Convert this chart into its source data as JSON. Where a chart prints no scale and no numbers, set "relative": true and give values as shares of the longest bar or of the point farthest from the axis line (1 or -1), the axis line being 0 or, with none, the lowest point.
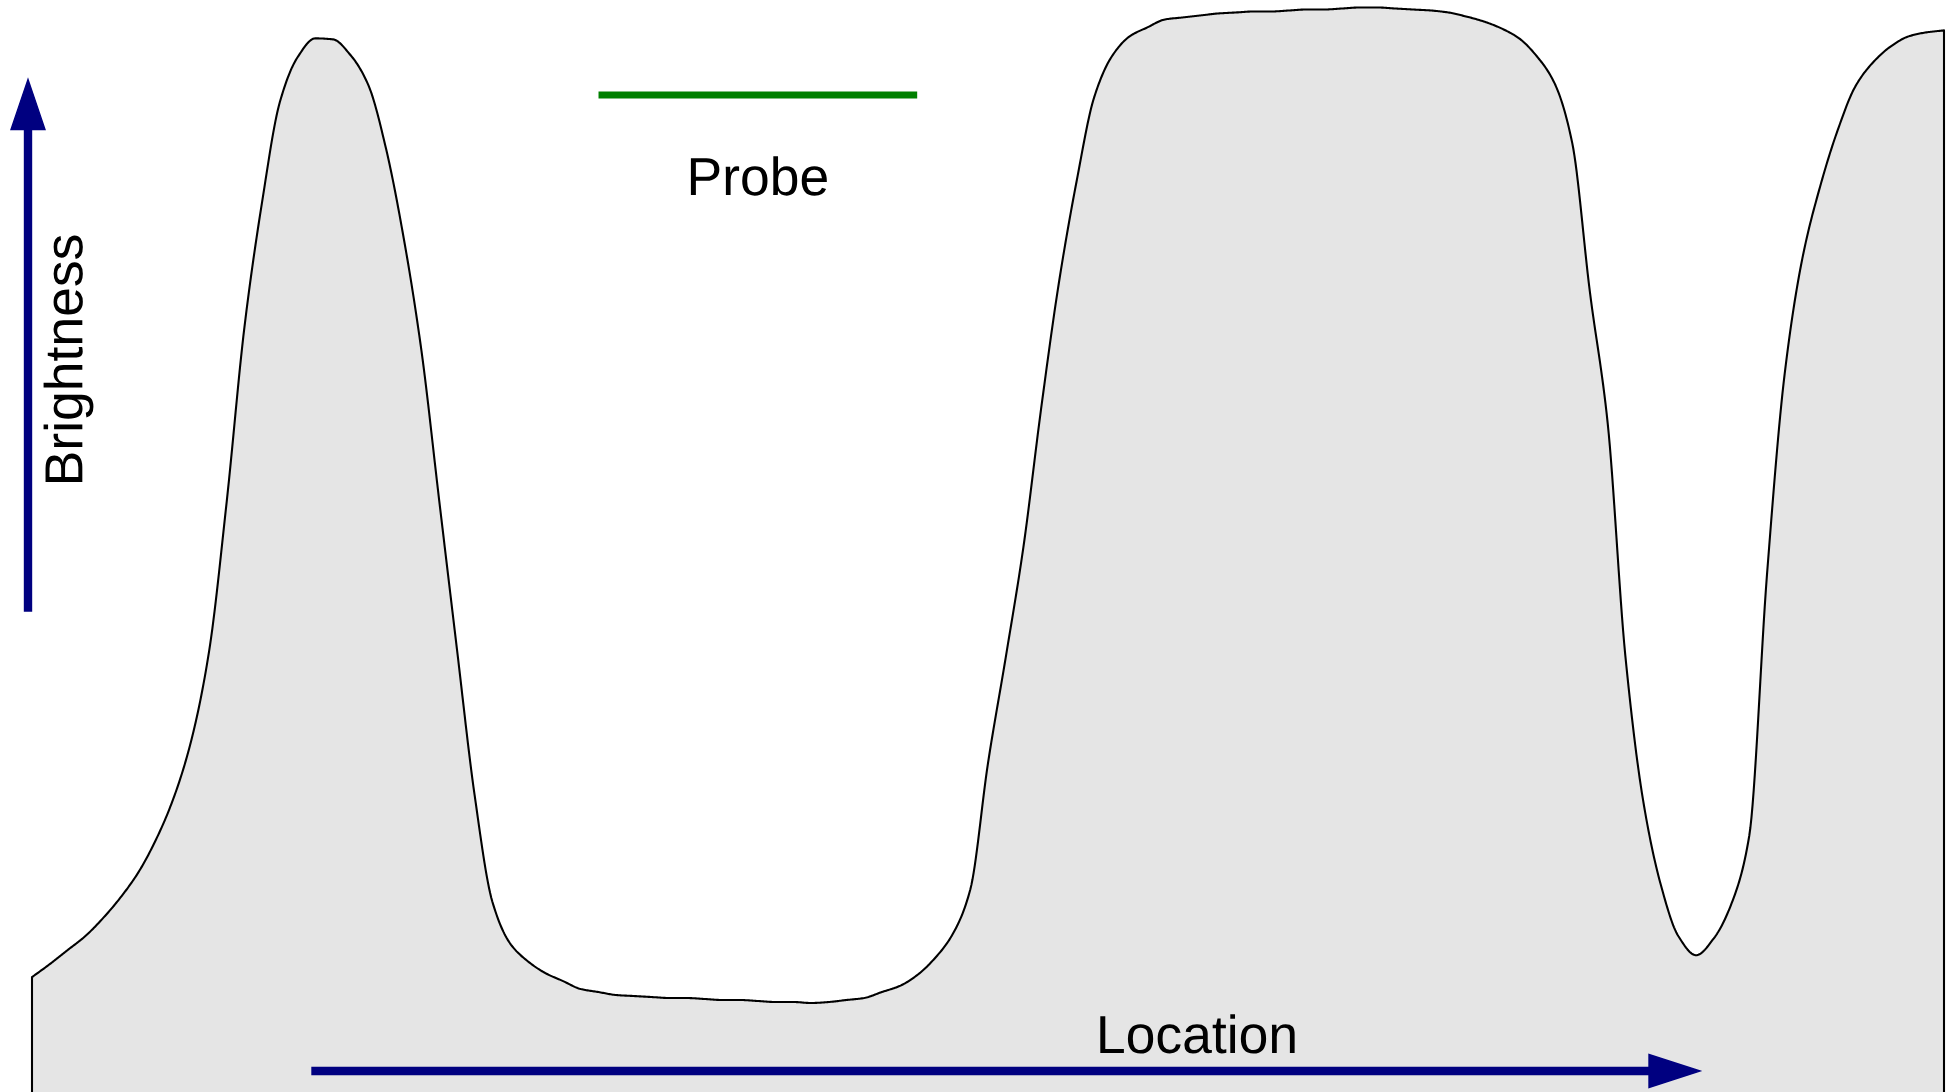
{
  "chart_data": {
    "type": "area",
    "relative": true,
    "xlabel": "Location",
    "ylabel": "Brightness",
    "categories": [
      null,
      null,
      null,
      null,
      null,
      null,
      null,
      null,
      null,
      null,
      null,
      null,
      null,
      null,
      null,
      null,
      null,
      null,
      null,
      null,
      null,
      null,
      null,
      null,
      null,
      null,
      null,
      null,
      null,
      null,
      null,
      null,
      null,
      null,
      null,
      null,
      null,
      null,
      null,
      null,
      null,
      null,
      null,
      null,
      null,
      null,
      null,
      null,
      null,
      null,
      null,
      null,
      null,
      null,
      null,
      null,
      null,
      null,
      null,
      null,
      null,
      null,
      null,
      null,
      null,
      null,
      null,
      null,
      null,
      null,
      null,
      null,
      null,
      null,
      null,
      null,
      null,
      null,
      null,
      null,
      null,
      null,
      null,
      null,
      null,
      null,
      null,
      null,
      null,
      null,
      null,
      null,
      null,
      null,
      null,
      null,
      null,
      null,
      null,
      null,
      null,
      null,
      null,
      null,
      null,
      null,
      null,
      null,
      null
    ],
    "series": [
      {
        "color": "#e5e5e5",
        "values": [
          0.026,
          0.039,
          0.053,
          0.067,
          0.085,
          0.106,
          0.131,
          0.164,
          0.206,
          0.264,
          0.353,
          0.504,
          0.679,
          0.805,
          0.905,
          0.95,
          0.969,
          0.968,
          0.952,
          0.922,
          0.858,
          0.768,
          0.655,
          0.505,
          0.356,
          0.209,
          0.102,
          0.06,
          0.042,
          0.03,
          0.022,
          0.014,
          0.011,
          0.008,
          0.007,
          0.006,
          0.005,
          0.005,
          0.004,
          0.003,
          0.003,
          0.002,
          0.001,
          0.001,
          0.0,
          0.001,
          0.003,
          0.005,
          0.011,
          0.017,
          0.028,
          0.045,
          0.069,
          0.114,
          0.241,
          0.347,
          0.458,
          0.597,
          0.723,
          0.825,
          0.91,
          0.951,
          0.971,
          0.98,
          0.988,
          0.99,
          0.992,
          0.994,
          0.995,
          0.996,
          0.996,
          0.997,
          0.998,
          0.998,
          0.999,
          1.0,
          1.0,
          0.999,
          0.998,
          0.997,
          0.995,
          0.991,
          0.986,
          0.979,
          0.969,
          0.951,
          0.924,
          0.864,
          0.714,
          0.583,
          0.349,
          0.204,
          0.119,
          0.067,
          0.048,
          0.065,
          0.1,
          0.168,
          0.43,
          0.632,
          0.748,
          0.82,
          0.877,
          0.921,
          0.945,
          0.961,
          0.971,
          0.975,
          0.977
        ]
      },
      {
        "type": "line",
        "name": "Probe",
        "color": "#008000",
        "values": [
          null,
          null,
          null,
          null,
          null,
          null,
          null,
          null,
          null,
          null,
          null,
          null,
          null,
          null,
          null,
          null,
          null,
          null,
          null,
          null,
          null,
          null,
          null,
          null,
          null,
          null,
          null,
          null,
          null,
          null,
          null,
          null,
          0.912,
          0.912,
          0.912,
          0.912,
          0.912,
          0.912,
          0.912,
          0.912,
          0.912,
          0.912,
          0.912,
          0.912,
          0.912,
          0.912,
          0.912,
          0.912,
          0.912,
          0.912,
          0.912,
          null,
          null,
          null,
          null,
          null,
          null,
          null,
          null,
          null,
          null,
          null,
          null,
          null,
          null,
          null,
          null,
          null,
          null,
          null,
          null,
          null,
          null,
          null,
          null,
          null,
          null,
          null,
          null,
          null,
          null,
          null,
          null,
          null,
          null,
          null,
          null,
          null,
          null,
          null,
          null,
          null,
          null,
          null,
          null,
          null,
          null,
          null,
          null,
          null,
          null,
          null,
          null,
          null,
          null,
          null,
          null,
          null,
          null
        ]
      }
    ]
  }
}
